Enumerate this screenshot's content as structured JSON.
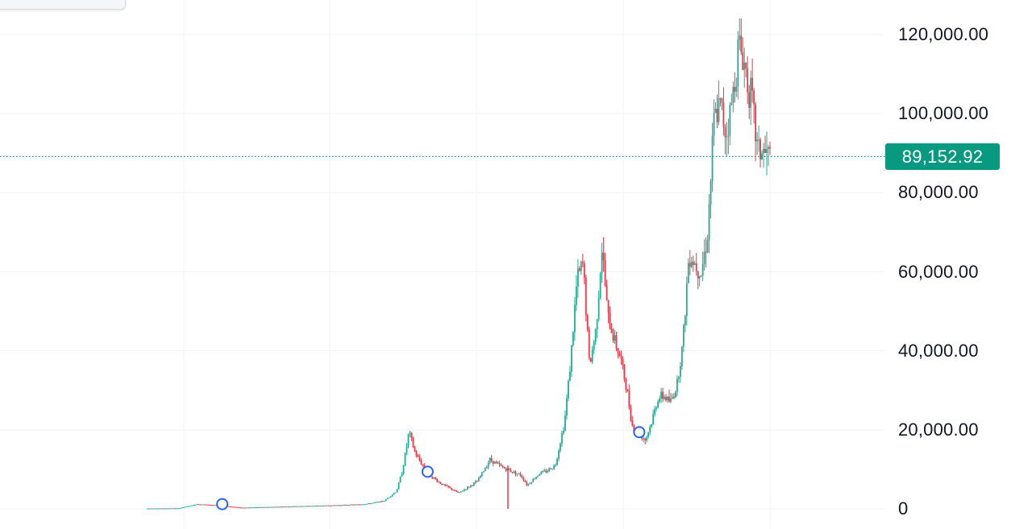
{
  "colors": {
    "up": "#22ab94",
    "down": "#f23645",
    "grid": "#f0f3fa",
    "axis_text": "#131722",
    "price_line": "#089981",
    "marker": "#2962ff"
  },
  "chart_data": {
    "type": "candlestick",
    "y_axis": {
      "ticks": [
        {
          "value": 120000,
          "label": "120,000.00"
        },
        {
          "value": 100000,
          "label": "100,000.00"
        },
        {
          "value": 80000,
          "label": "80,000.00"
        },
        {
          "value": 60000,
          "label": "60,000.00"
        },
        {
          "value": 40000,
          "label": "40,000.00"
        },
        {
          "value": 20000,
          "label": "20,000.00"
        },
        {
          "value": 0,
          "label": "0"
        }
      ],
      "range": [
        0,
        126000
      ]
    },
    "current_price": {
      "value": 89152.92,
      "label": "89,152.92"
    },
    "price_path": [
      [
        0,
        100
      ],
      [
        0.05,
        150
      ],
      [
        0.08,
        1200
      ],
      [
        0.12,
        800
      ],
      [
        0.15,
        300
      ],
      [
        0.2,
        500
      ],
      [
        0.25,
        700
      ],
      [
        0.3,
        900
      ],
      [
        0.35,
        1200
      ],
      [
        0.38,
        2000
      ],
      [
        0.4,
        4500
      ],
      [
        0.41,
        10000
      ],
      [
        0.42,
        19500
      ],
      [
        0.43,
        14000
      ],
      [
        0.45,
        9000
      ],
      [
        0.47,
        6500
      ],
      [
        0.5,
        4000
      ],
      [
        0.53,
        7000
      ],
      [
        0.55,
        12500
      ],
      [
        0.57,
        10500
      ],
      [
        0.6,
        8500
      ],
      [
        0.61,
        6000
      ],
      [
        0.63,
        9000
      ],
      [
        0.64,
        9500
      ],
      [
        0.655,
        11000
      ],
      [
        0.67,
        22000
      ],
      [
        0.68,
        38000
      ],
      [
        0.69,
        58000
      ],
      [
        0.7,
        62000
      ],
      [
        0.71,
        36000
      ],
      [
        0.72,
        45000
      ],
      [
        0.73,
        66000
      ],
      [
        0.74,
        48000
      ],
      [
        0.75,
        43000
      ],
      [
        0.76,
        38000
      ],
      [
        0.77,
        30000
      ],
      [
        0.78,
        20000
      ],
      [
        0.79,
        19000
      ],
      [
        0.8,
        17500
      ],
      [
        0.81,
        22000
      ],
      [
        0.82,
        28000
      ],
      [
        0.83,
        28500
      ],
      [
        0.84,
        27000
      ],
      [
        0.85,
        31000
      ],
      [
        0.86,
        42000
      ],
      [
        0.87,
        65000
      ],
      [
        0.88,
        62000
      ],
      [
        0.89,
        60000
      ],
      [
        0.9,
        70000
      ],
      [
        0.91,
        98000
      ],
      [
        0.92,
        102000
      ],
      [
        0.93,
        95000
      ],
      [
        0.94,
        104000
      ],
      [
        0.95,
        118000
      ],
      [
        0.96,
        112000
      ],
      [
        0.97,
        104000
      ],
      [
        0.98,
        91000
      ],
      [
        1.0,
        89152.92
      ]
    ],
    "markers": [
      0.12,
      0.45,
      0.79
    ]
  }
}
